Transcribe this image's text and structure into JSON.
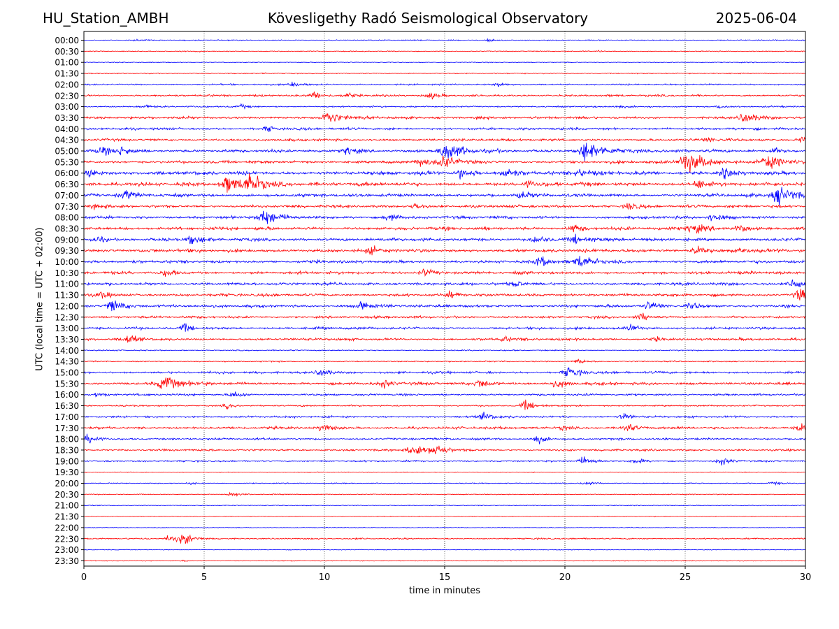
{
  "header": {
    "station": "HU_Station_AMBH",
    "observatory": "Kövesligethy Radó Seismological Observatory",
    "date": "2025-06-04"
  },
  "chart_data": {
    "type": "line",
    "xlabel": "time in minutes",
    "ylabel": "UTC (local time = UTC + 02:00)",
    "xlim": [
      0,
      30
    ],
    "xticks": [
      0,
      5,
      10,
      15,
      20,
      25,
      30
    ],
    "grid": "vertical dotted at x ticks",
    "trace_colors": [
      "#0000ff",
      "#ff0000"
    ],
    "rows": [
      {
        "label": "00:00",
        "activity": 0.15,
        "events": [
          [
            16.9,
            0.25
          ],
          [
            2.2,
            0.1
          ]
        ]
      },
      {
        "label": "00:30",
        "activity": 0.12,
        "events": [
          [
            4.8,
            0.1
          ],
          [
            21.5,
            0.1
          ]
        ]
      },
      {
        "label": "01:00",
        "activity": 0.1,
        "events": []
      },
      {
        "label": "01:30",
        "activity": 0.15,
        "events": [
          [
            7.5,
            0.1
          ]
        ]
      },
      {
        "label": "02:00",
        "activity": 0.3,
        "events": [
          [
            8.7,
            0.4
          ],
          [
            17.3,
            0.3
          ]
        ]
      },
      {
        "label": "02:30",
        "activity": 0.4,
        "events": [
          [
            9.6,
            0.6
          ],
          [
            11.0,
            0.4
          ],
          [
            14.5,
            0.4
          ]
        ]
      },
      {
        "label": "03:00",
        "activity": 0.3,
        "events": [
          [
            2.5,
            0.25
          ],
          [
            6.6,
            0.3
          ],
          [
            22.3,
            0.2
          ],
          [
            26.5,
            0.3
          ]
        ]
      },
      {
        "label": "03:30",
        "activity": 0.5,
        "events": [
          [
            10.2,
            1.0
          ],
          [
            27.5,
            0.8
          ],
          [
            16.5,
            0.3
          ]
        ]
      },
      {
        "label": "04:00",
        "activity": 0.5,
        "events": [
          [
            7.7,
            0.4
          ]
        ]
      },
      {
        "label": "04:30",
        "activity": 0.5,
        "events": [
          [
            29.9,
            0.5
          ],
          [
            26.0,
            0.4
          ]
        ]
      },
      {
        "label": "05:00",
        "activity": 0.6,
        "events": [
          [
            0.8,
            0.6
          ],
          [
            1.6,
            0.7
          ],
          [
            11.0,
            0.7
          ],
          [
            15.1,
            1.4
          ],
          [
            20.9,
            1.6
          ],
          [
            28.7,
            0.5
          ]
        ]
      },
      {
        "label": "05:30",
        "activity": 0.6,
        "events": [
          [
            15.0,
            1.0
          ],
          [
            25.1,
            1.6
          ],
          [
            28.4,
            1.2
          ],
          [
            14.0,
            0.6
          ]
        ]
      },
      {
        "label": "06:00",
        "activity": 0.8,
        "events": [
          [
            0.3,
            0.6
          ],
          [
            17.6,
            0.9
          ],
          [
            15.7,
            0.7
          ],
          [
            20.6,
            0.6
          ],
          [
            26.7,
            0.8
          ]
        ]
      },
      {
        "label": "06:30",
        "activity": 0.8,
        "events": [
          [
            6.0,
            1.2
          ],
          [
            6.9,
            1.4
          ],
          [
            25.6,
            0.7
          ],
          [
            18.5,
            0.5
          ]
        ]
      },
      {
        "label": "07:00",
        "activity": 0.7,
        "events": [
          [
            28.9,
            1.3
          ],
          [
            1.8,
            0.6
          ],
          [
            18.2,
            0.5
          ]
        ]
      },
      {
        "label": "07:30",
        "activity": 0.6,
        "events": [
          [
            22.7,
            0.6
          ],
          [
            13.8,
            0.5
          ],
          [
            0.5,
            0.4
          ]
        ]
      },
      {
        "label": "08:00",
        "activity": 0.6,
        "events": [
          [
            7.5,
            1.2
          ],
          [
            12.7,
            0.6
          ],
          [
            26.2,
            0.6
          ]
        ]
      },
      {
        "label": "08:30",
        "activity": 0.7,
        "events": [
          [
            25.3,
            0.8
          ],
          [
            27.3,
            0.6
          ],
          [
            20.4,
            0.6
          ]
        ]
      },
      {
        "label": "09:00",
        "activity": 0.7,
        "events": [
          [
            0.6,
            0.5
          ],
          [
            4.5,
            0.6
          ],
          [
            18.8,
            0.6
          ],
          [
            20.5,
            0.7
          ]
        ]
      },
      {
        "label": "09:30",
        "activity": 0.7,
        "events": [
          [
            25.5,
            0.6
          ],
          [
            12.0,
            0.5
          ],
          [
            27.4,
            0.4
          ]
        ]
      },
      {
        "label": "10:00",
        "activity": 0.6,
        "events": [
          [
            20.7,
            1.0
          ],
          [
            19.0,
            0.7
          ]
        ]
      },
      {
        "label": "10:30",
        "activity": 0.6,
        "events": [
          [
            14.2,
            0.6
          ],
          [
            3.5,
            0.5
          ]
        ]
      },
      {
        "label": "11:00",
        "activity": 0.6,
        "events": [
          [
            29.6,
            0.9
          ],
          [
            18.0,
            0.4
          ]
        ]
      },
      {
        "label": "11:30",
        "activity": 0.6,
        "events": [
          [
            29.8,
            0.9
          ],
          [
            0.8,
            0.5
          ],
          [
            15.3,
            0.4
          ]
        ]
      },
      {
        "label": "12:00",
        "activity": 0.6,
        "events": [
          [
            1.2,
            1.0
          ],
          [
            11.6,
            0.6
          ],
          [
            23.5,
            0.6
          ],
          [
            25.3,
            0.5
          ]
        ]
      },
      {
        "label": "12:30",
        "activity": 0.5,
        "events": [
          [
            23.2,
            0.5
          ]
        ]
      },
      {
        "label": "13:00",
        "activity": 0.5,
        "events": [
          [
            4.2,
            0.5
          ],
          [
            22.8,
            0.5
          ]
        ]
      },
      {
        "label": "13:30",
        "activity": 0.5,
        "events": [
          [
            1.9,
            0.6
          ],
          [
            17.5,
            0.4
          ],
          [
            23.8,
            0.3
          ]
        ]
      },
      {
        "label": "14:00",
        "activity": 0.2,
        "events": []
      },
      {
        "label": "14:30",
        "activity": 0.2,
        "events": [
          [
            20.6,
            0.4
          ]
        ]
      },
      {
        "label": "15:00",
        "activity": 0.5,
        "events": [
          [
            9.9,
            0.6
          ],
          [
            20.2,
            0.8
          ]
        ]
      },
      {
        "label": "15:30",
        "activity": 0.6,
        "events": [
          [
            3.4,
            1.2
          ],
          [
            16.5,
            0.7
          ],
          [
            19.7,
            0.6
          ],
          [
            12.5,
            0.5
          ]
        ]
      },
      {
        "label": "16:00",
        "activity": 0.4,
        "events": [
          [
            6.3,
            0.5
          ],
          [
            0.6,
            0.3
          ]
        ]
      },
      {
        "label": "16:30",
        "activity": 0.3,
        "events": [
          [
            18.4,
            0.7
          ],
          [
            6.0,
            0.4
          ]
        ]
      },
      {
        "label": "17:00",
        "activity": 0.4,
        "events": [
          [
            16.7,
            0.6
          ],
          [
            22.5,
            0.5
          ]
        ]
      },
      {
        "label": "17:30",
        "activity": 0.5,
        "events": [
          [
            10.0,
            0.6
          ],
          [
            22.6,
            0.6
          ],
          [
            29.8,
            0.6
          ],
          [
            20.0,
            0.4
          ]
        ]
      },
      {
        "label": "18:00",
        "activity": 0.4,
        "events": [
          [
            0.2,
            0.7
          ],
          [
            18.9,
            0.6
          ]
        ]
      },
      {
        "label": "18:30",
        "activity": 0.4,
        "events": [
          [
            13.7,
            1.0
          ],
          [
            14.7,
            0.8
          ]
        ]
      },
      {
        "label": "19:00",
        "activity": 0.3,
        "events": [
          [
            20.8,
            0.6
          ],
          [
            26.5,
            0.6
          ],
          [
            23.0,
            0.4
          ]
        ]
      },
      {
        "label": "19:30",
        "activity": 0.08,
        "events": []
      },
      {
        "label": "20:00",
        "activity": 0.15,
        "events": [
          [
            20.9,
            0.4
          ],
          [
            28.7,
            0.3
          ],
          [
            4.5,
            0.2
          ]
        ]
      },
      {
        "label": "20:30",
        "activity": 0.12,
        "events": [
          [
            6.2,
            0.4
          ]
        ]
      },
      {
        "label": "21:00",
        "activity": 0.1,
        "events": []
      },
      {
        "label": "21:30",
        "activity": 0.08,
        "events": []
      },
      {
        "label": "22:00",
        "activity": 0.08,
        "events": []
      },
      {
        "label": "22:30",
        "activity": 0.25,
        "events": [
          [
            4.2,
            0.8
          ],
          [
            3.6,
            0.5
          ]
        ]
      },
      {
        "label": "23:00",
        "activity": 0.08,
        "events": []
      },
      {
        "label": "23:30",
        "activity": 0.08,
        "events": [
          [
            4.2,
            0.1
          ]
        ]
      }
    ]
  }
}
